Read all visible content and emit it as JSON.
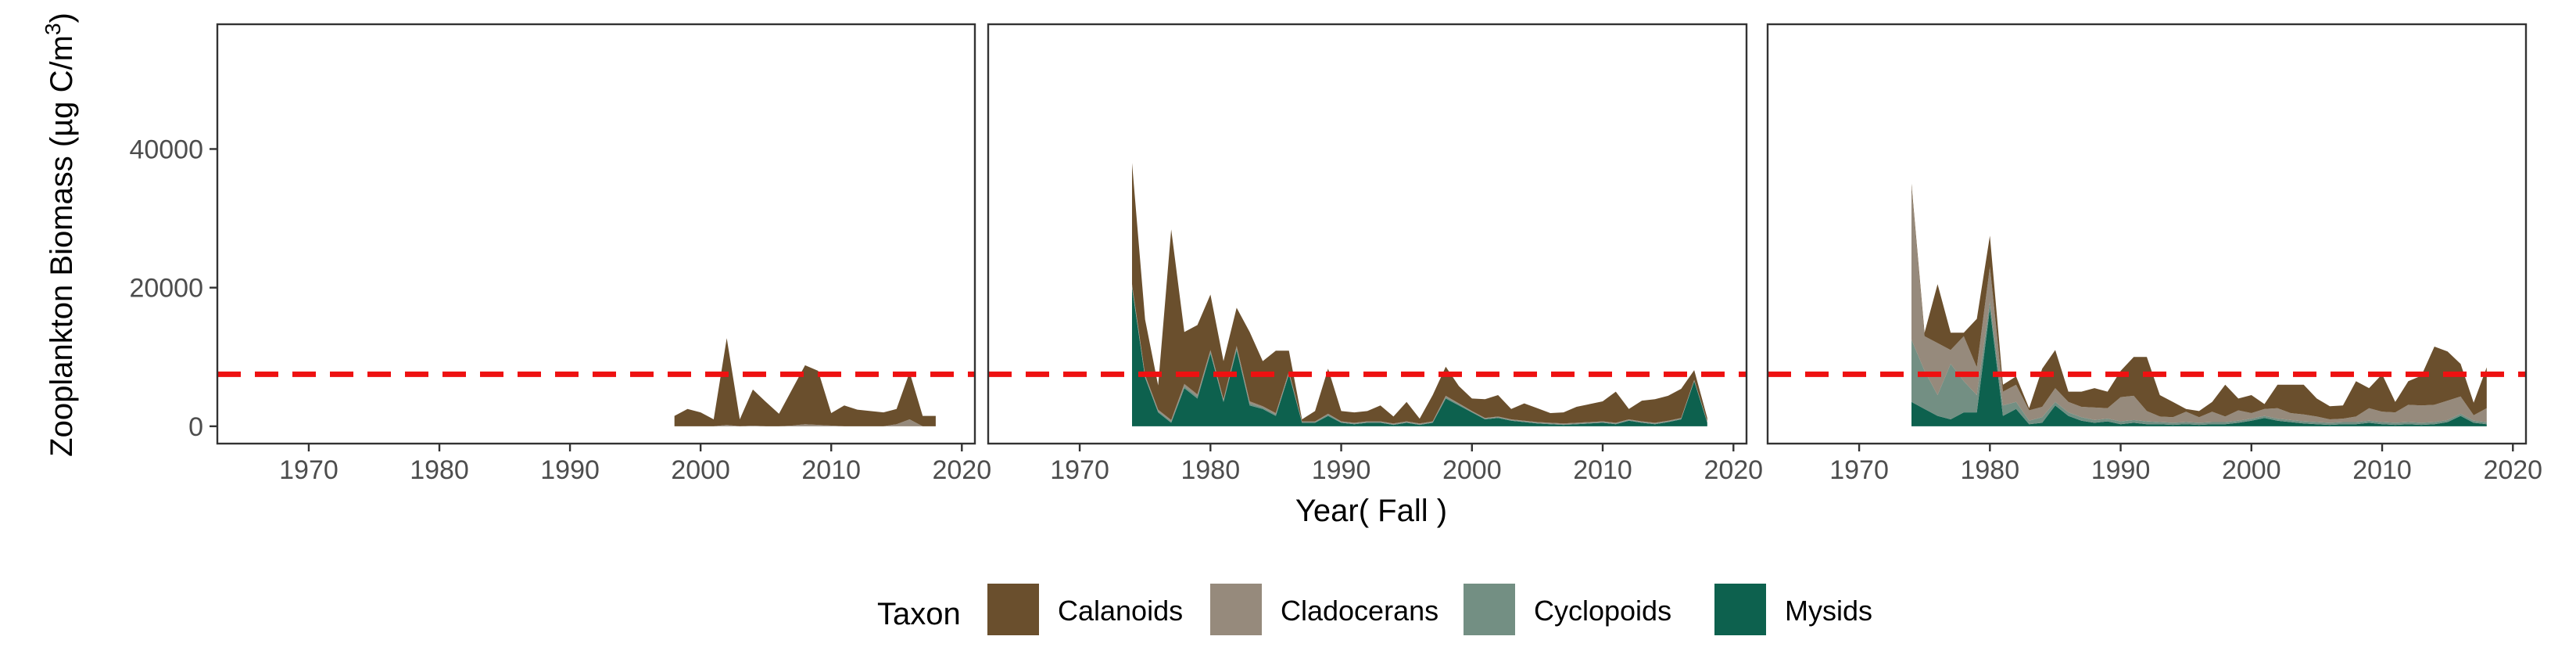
{
  "chart_data": {
    "type": "area",
    "stacked": true,
    "xlabel": "Year( Fall )",
    "ylabel_main": "Zooplankton Biomass (µg C/m",
    "ylabel_sup": "3",
    "ylabel_end": ")",
    "xlim": [
      1963,
      2021
    ],
    "ylim": [
      -2500,
      58000
    ],
    "x_ticks": [
      1970,
      1980,
      1990,
      2000,
      2010,
      2020
    ],
    "y_ticks": [
      0,
      20000,
      40000
    ],
    "reference_line": {
      "y": 7500,
      "color": "#ee1111",
      "style": "dashed"
    },
    "grid": false,
    "legend": {
      "title": "Taxon",
      "position": "bottom",
      "items": [
        "Calanoids",
        "Cladocerans",
        "Cyclopoids",
        "Mysids"
      ]
    },
    "colors": {
      "Calanoids": "#6a4f2d",
      "Cladocerans": "#968a7c",
      "Cyclopoids": "#738f83",
      "Mysids": "#0d614e"
    },
    "panels": [
      {
        "x": [
          1998,
          1999,
          2000,
          2001,
          2002,
          2003,
          2004,
          2005,
          2006,
          2007,
          2008,
          2009,
          2010,
          2011,
          2012,
          2013,
          2014,
          2015,
          2016,
          2017,
          2018
        ],
        "series": [
          {
            "name": "Mysids",
            "values": [
              0,
              0,
              0,
              0,
              0,
              0,
              0,
              0,
              0,
              0,
              0,
              0,
              0,
              0,
              0,
              0,
              0,
              0,
              0,
              0,
              0
            ]
          },
          {
            "name": "Cyclopoids",
            "values": [
              0,
              0,
              0,
              0,
              0,
              0,
              0,
              0,
              0,
              0,
              0,
              0,
              0,
              0,
              0,
              0,
              0,
              0,
              0,
              0,
              0
            ]
          },
          {
            "name": "Cladocerans",
            "values": [
              0,
              0,
              0,
              0,
              200,
              0,
              100,
              0,
              0,
              100,
              300,
              200,
              100,
              0,
              0,
              0,
              0,
              300,
              1000,
              0,
              0
            ]
          },
          {
            "name": "Calanoids",
            "values": [
              1500,
              2500,
              2000,
              1000,
              12500,
              1000,
              5200,
              3500,
              1800,
              5200,
              8500,
              7800,
              1800,
              3000,
              2400,
              2200,
              2000,
              2200,
              6800,
              1500,
              1500
            ]
          }
        ]
      },
      {
        "x": [
          1974,
          1975,
          1976,
          1977,
          1978,
          1979,
          1980,
          1981,
          1982,
          1983,
          1984,
          1985,
          1986,
          1987,
          1988,
          1989,
          1990,
          1991,
          1992,
          1993,
          1994,
          1995,
          1996,
          1997,
          1998,
          1999,
          2000,
          2001,
          2002,
          2003,
          2004,
          2005,
          2006,
          2007,
          2008,
          2009,
          2010,
          2011,
          2012,
          2013,
          2014,
          2015,
          2016,
          2017,
          2018
        ],
        "series": [
          {
            "name": "Mysids",
            "values": [
              20000,
              7000,
              2000,
              500,
              5500,
              4000,
              10500,
              3500,
              11000,
              3000,
              2500,
              1500,
              7500,
              500,
              500,
              1500,
              500,
              300,
              500,
              500,
              200,
              500,
              200,
              500,
              4000,
              3000,
              2000,
              1000,
              1200,
              800,
              600,
              400,
              300,
              200,
              300,
              400,
              500,
              300,
              800,
              500,
              300,
              600,
              1000,
              6500,
              500
            ]
          },
          {
            "name": "Cyclopoids",
            "values": [
              300,
              200,
              200,
              200,
              300,
              300,
              300,
              200,
              300,
              300,
              200,
              200,
              200,
              100,
              100,
              200,
              100,
              100,
              100,
              100,
              100,
              100,
              100,
              100,
              200,
              200,
              100,
              100,
              100,
              100,
              100,
              100,
              100,
              100,
              100,
              100,
              100,
              100,
              100,
              100,
              100,
              100,
              100,
              100,
              100
            ]
          },
          {
            "name": "Cladocerans",
            "values": [
              200,
              200,
              200,
              200,
              300,
              300,
              200,
              200,
              300,
              300,
              200,
              200,
              200,
              100,
              100,
              100,
              100,
              100,
              100,
              100,
              100,
              100,
              100,
              100,
              200,
              100,
              100,
              100,
              100,
              100,
              100,
              100,
              100,
              100,
              100,
              100,
              100,
              100,
              100,
              100,
              100,
              100,
              100,
              100,
              100
            ]
          },
          {
            "name": "Calanoids",
            "values": [
              17500,
              8000,
              3500,
              27500,
              7500,
              10000,
              8000,
              5500,
              5500,
              10000,
              6500,
              9000,
              3000,
              300,
              1500,
              6500,
              1500,
              1500,
              1500,
              2300,
              1000,
              2800,
              700,
              3800,
              4200,
              2500,
              1800,
              2700,
              3100,
              1500,
              2500,
              2000,
              1400,
              1600,
              2300,
              2600,
              2900,
              4500,
              1500,
              3000,
              3400,
              3600,
              4200,
              1400,
              500
            ]
          }
        ]
      },
      {
        "x": [
          1974,
          1975,
          1976,
          1977,
          1978,
          1979,
          1980,
          1981,
          1982,
          1983,
          1984,
          1985,
          1986,
          1987,
          1988,
          1989,
          1990,
          1991,
          1992,
          1993,
          1994,
          1995,
          1996,
          1997,
          1998,
          1999,
          2000,
          2001,
          2002,
          2003,
          2004,
          2005,
          2006,
          2007,
          2008,
          2009,
          2010,
          2011,
          2012,
          2013,
          2014,
          2015,
          2016,
          2017,
          2018
        ],
        "series": [
          {
            "name": "Mysids",
            "values": [
              3500,
              2500,
              1500,
              1000,
              2000,
              2000,
              17000,
              1500,
              2500,
              300,
              500,
              3000,
              1500,
              800,
              500,
              700,
              300,
              500,
              300,
              300,
              200,
              300,
              200,
              300,
              300,
              500,
              800,
              1200,
              800,
              600,
              400,
              300,
              200,
              300,
              300,
              500,
              300,
              200,
              300,
              200,
              300,
              600,
              1500,
              500,
              300
            ]
          },
          {
            "name": "Cyclopoids",
            "values": [
              9000,
              5500,
              3000,
              8000,
              4500,
              2500,
              1000,
              1500,
              1000,
              500,
              800,
              500,
              500,
              500,
              400,
              400,
              400,
              400,
              400,
              300,
              300,
              300,
              300,
              300,
              300,
              300,
              300,
              300,
              300,
              300,
              300,
              300,
              300,
              300,
              300,
              300,
              300,
              300,
              300,
              300,
              300,
              300,
              300,
              300,
              300
            ]
          },
          {
            "name": "Cladocerans",
            "values": [
              22000,
              5000,
              7500,
              2000,
              6500,
              4000,
              5000,
              2000,
              2500,
              1500,
              1500,
              2000,
              1500,
              1500,
              1800,
              1500,
              3500,
              3500,
              1500,
              800,
              800,
              1500,
              800,
              1500,
              800,
              1500,
              800,
              1000,
              1500,
              1000,
              1000,
              800,
              500,
              500,
              800,
              1800,
              1500,
              1500,
              2500,
              2500,
              2500,
              2800,
              2500,
              800,
              2000
            ]
          },
          {
            "name": "Calanoids",
            "values": [
              500,
              500,
              8500,
              2500,
              500,
              7000,
              4500,
              1000,
              1200,
              300,
              5500,
              5500,
              1500,
              2200,
              2800,
              2400,
              3800,
              5600,
              7800,
              3100,
              2200,
              400,
              900,
              1400,
              4600,
              1700,
              2600,
              700,
              3400,
              4100,
              4300,
              2600,
              1900,
              1900,
              5100,
              2900,
              5400,
              1500,
              3400,
              4300,
              8400,
              7100,
              4700,
              1800,
              5900
            ]
          }
        ]
      }
    ]
  }
}
